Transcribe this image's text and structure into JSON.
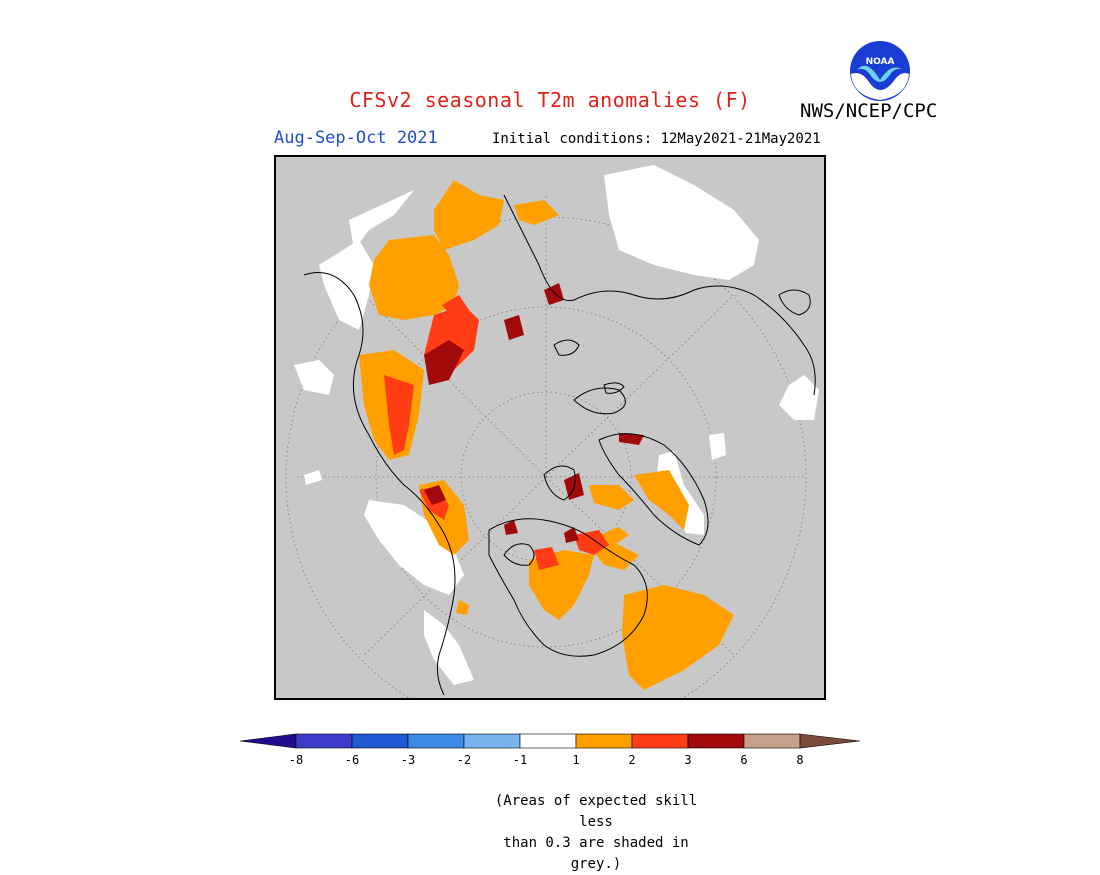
{
  "header": {
    "title": "CFSv2 seasonal T2m anomalies (F)",
    "organization": "NWS/NCEP/CPC",
    "logo_text": "NOAA",
    "period": "Aug-Sep-Oct 2021",
    "initial_conditions": "Initial conditions: 12May2021-21May2021"
  },
  "map": {
    "projection": "north polar stereographic",
    "background_color": "#c8c8c8",
    "no_skill_color": "#c8c8c8"
  },
  "colorbar": {
    "tick_labels": [
      "-8",
      "-6",
      "-3",
      "-2",
      "-1",
      "1",
      "2",
      "3",
      "6",
      "8"
    ],
    "colors": [
      "#1e0c8c",
      "#3c3cc8",
      "#1e5ad2",
      "#3c8ce6",
      "#78b4f0",
      "#ffffff",
      "#ffa000",
      "#ff3c14",
      "#a00a0a",
      "#c8a08c",
      "#7a4a3a"
    ]
  },
  "footnote": {
    "line1": "(Areas of expected skill less",
    "line2": "than 0.3 are shaded in grey.)"
  }
}
